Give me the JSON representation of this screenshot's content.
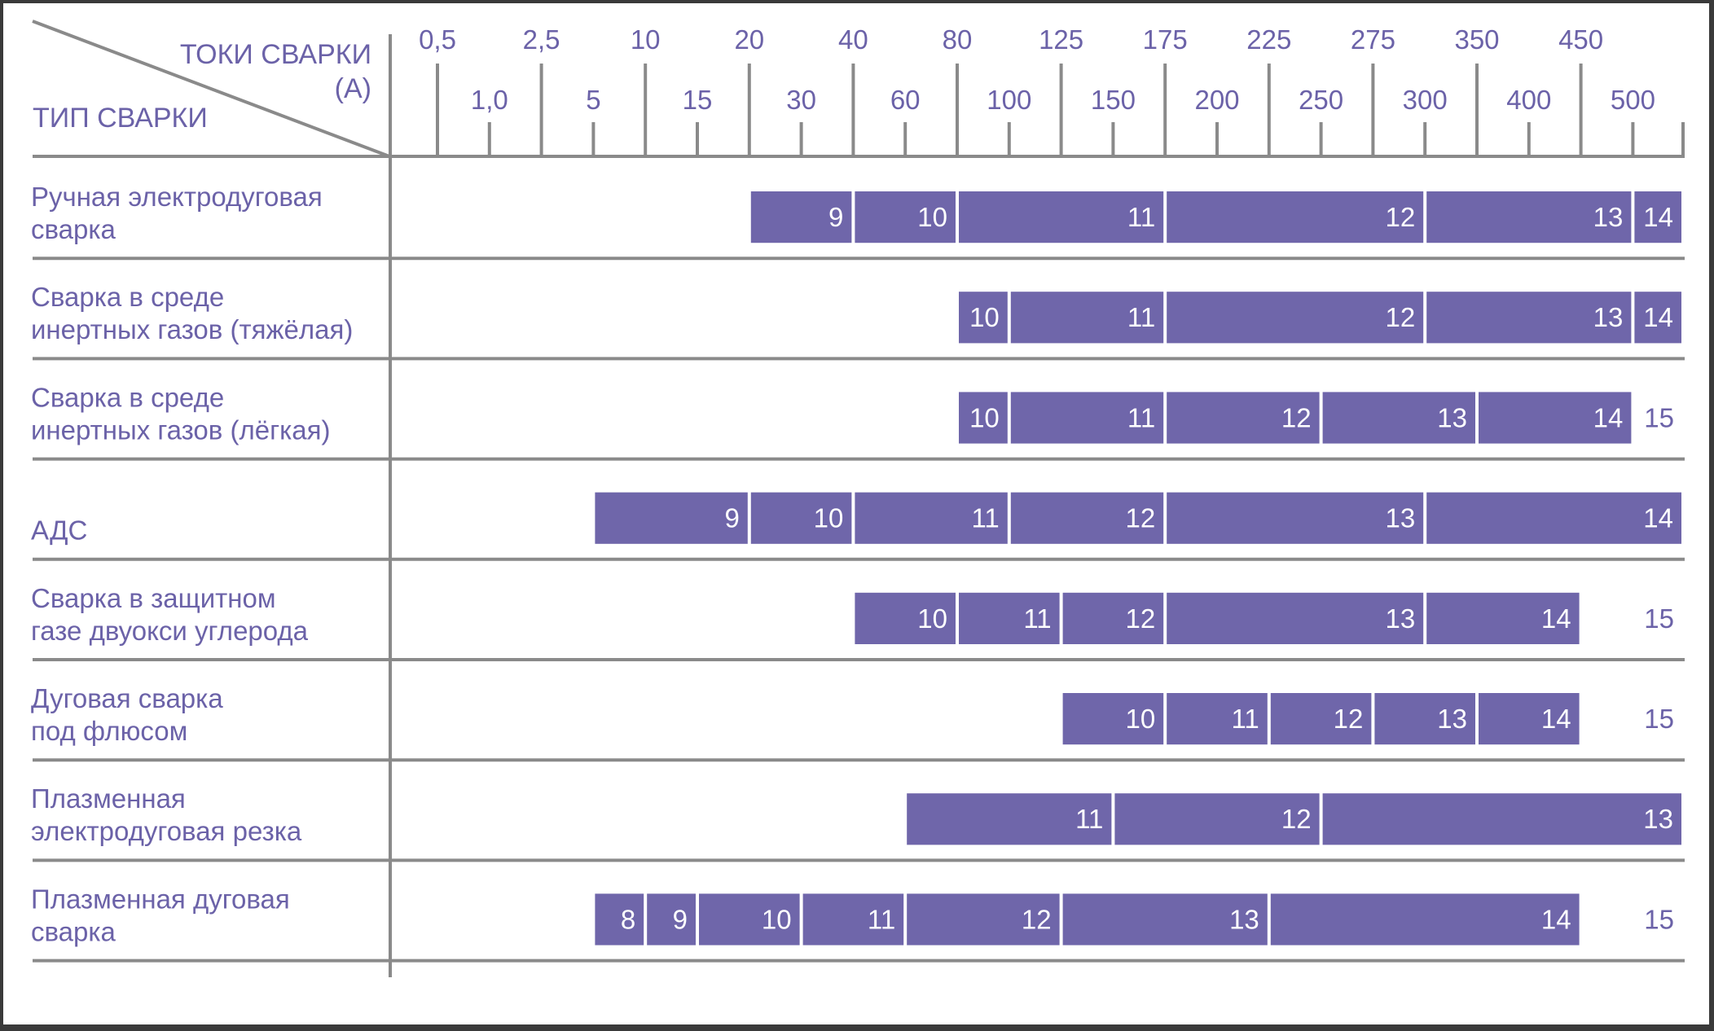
{
  "header": {
    "currents_label_line1": "ТОКИ СВАРКИ",
    "currents_label_line2": "(А)",
    "type_label": "ТИП СВАРКИ"
  },
  "colors": {
    "bar": "#6f66aa",
    "text": "#6b62a8",
    "grid": "#8a8a8a",
    "background": "#ffffff"
  },
  "chart_data": {
    "type": "table",
    "x_ticks": [
      "0,5",
      "1,0",
      "2,5",
      "5",
      "10",
      "15",
      "20",
      "30",
      "40",
      "60",
      "80",
      "100",
      "125",
      "150",
      "175",
      "200",
      "225",
      "250",
      "275",
      "300",
      "350",
      "400",
      "450",
      "500"
    ],
    "rows": [
      {
        "label": [
          "Ручная электродуговая",
          "сварка"
        ],
        "segments": [
          {
            "from": "20",
            "to": "40",
            "value": "9"
          },
          {
            "from": "40",
            "to": "80",
            "value": "10"
          },
          {
            "from": "80",
            "to": "175",
            "value": "11"
          },
          {
            "from": "175",
            "to": "300",
            "value": "12"
          },
          {
            "from": "300",
            "to": "500",
            "value": "13"
          },
          {
            "from": "500",
            "to": "end",
            "value": "14"
          }
        ],
        "outside": ""
      },
      {
        "label": [
          "Сварка в среде",
          "инертных газов (тяжёлая)"
        ],
        "segments": [
          {
            "from": "80",
            "to": "100",
            "value": "10"
          },
          {
            "from": "100",
            "to": "175",
            "value": "11"
          },
          {
            "from": "175",
            "to": "300",
            "value": "12"
          },
          {
            "from": "300",
            "to": "500",
            "value": "13"
          },
          {
            "from": "500",
            "to": "end",
            "value": "14"
          }
        ],
        "outside": ""
      },
      {
        "label": [
          "Сварка в среде",
          "инертных газов (лёгкая)"
        ],
        "segments": [
          {
            "from": "80",
            "to": "100",
            "value": "10"
          },
          {
            "from": "100",
            "to": "175",
            "value": "11"
          },
          {
            "from": "175",
            "to": "250",
            "value": "12"
          },
          {
            "from": "250",
            "to": "350",
            "value": "13"
          },
          {
            "from": "350",
            "to": "500",
            "value": "14"
          }
        ],
        "outside": "15"
      },
      {
        "label": [
          "",
          "АДС"
        ],
        "segments": [
          {
            "from": "5",
            "to": "20",
            "value": "9"
          },
          {
            "from": "20",
            "to": "40",
            "value": "10"
          },
          {
            "from": "40",
            "to": "100",
            "value": "11"
          },
          {
            "from": "100",
            "to": "175",
            "value": "12"
          },
          {
            "from": "175",
            "to": "300",
            "value": "13"
          },
          {
            "from": "300",
            "to": "end",
            "value": "14"
          }
        ],
        "outside": ""
      },
      {
        "label": [
          "Сварка в защитном",
          "газе двуокси углерода"
        ],
        "segments": [
          {
            "from": "40",
            "to": "80",
            "value": "10"
          },
          {
            "from": "80",
            "to": "125",
            "value": "11"
          },
          {
            "from": "125",
            "to": "175",
            "value": "12"
          },
          {
            "from": "175",
            "to": "300",
            "value": "13"
          },
          {
            "from": "300",
            "to": "450",
            "value": "14"
          }
        ],
        "outside": "15"
      },
      {
        "label": [
          "Дуговая сварка",
          "под флюсом"
        ],
        "segments": [
          {
            "from": "125",
            "to": "175",
            "value": "10"
          },
          {
            "from": "175",
            "to": "225",
            "value": "11"
          },
          {
            "from": "225",
            "to": "275",
            "value": "12"
          },
          {
            "from": "275",
            "to": "350",
            "value": "13"
          },
          {
            "from": "350",
            "to": "450",
            "value": "14"
          }
        ],
        "outside": "15"
      },
      {
        "label": [
          "Плазменная",
          "электродуговая резка"
        ],
        "segments": [
          {
            "from": "60",
            "to": "150",
            "value": "11"
          },
          {
            "from": "150",
            "to": "250",
            "value": "12"
          },
          {
            "from": "250",
            "to": "end",
            "value": "13"
          }
        ],
        "outside": ""
      },
      {
        "label": [
          "Плазменная дуговая",
          "сварка"
        ],
        "segments": [
          {
            "from": "5",
            "to": "10",
            "value": "8"
          },
          {
            "from": "10",
            "to": "15",
            "value": "9"
          },
          {
            "from": "15",
            "to": "30",
            "value": "10"
          },
          {
            "from": "30",
            "to": "60",
            "value": "11"
          },
          {
            "from": "60",
            "to": "125",
            "value": "12"
          },
          {
            "from": "125",
            "to": "225",
            "value": "13"
          },
          {
            "from": "225",
            "to": "450",
            "value": "14"
          }
        ],
        "outside": "15"
      }
    ]
  }
}
